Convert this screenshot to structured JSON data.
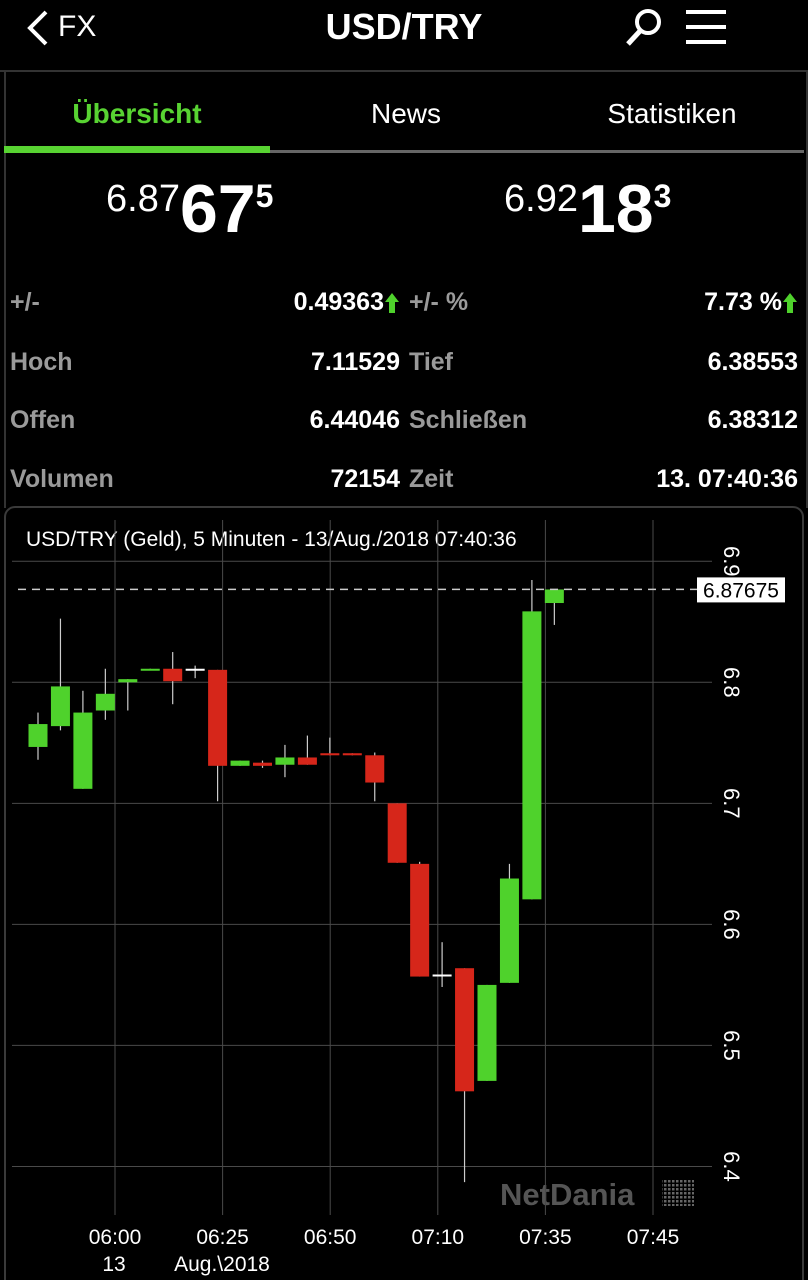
{
  "header": {
    "back": "FX",
    "title": "USD/TRY"
  },
  "tabs": [
    "Übersicht",
    "News",
    "Statistiken"
  ],
  "quotes": [
    {
      "prefix": "6.87",
      "big": "67",
      "sup": "5"
    },
    {
      "prefix": "6.92",
      "big": "18",
      "sup": "3"
    }
  ],
  "stats": [
    {
      "label": "+/-",
      "value": "0.49363"
    },
    {
      "label": "+/- %",
      "value": "7.73 %"
    },
    {
      "label": "Hoch",
      "value": "7.11529"
    },
    {
      "label": "Tief",
      "value": "6.38553"
    },
    {
      "label": "Offen",
      "value": "6.44046"
    },
    {
      "label": "Schließen",
      "value": "6.38312"
    },
    {
      "label": "Volumen",
      "value": "72154"
    },
    {
      "label": "Zeit",
      "value": "13. 07:40:36"
    }
  ],
  "chart_data": {
    "type": "candlestick",
    "title": "USD/TRY (Geld), 5 Minuten - 13/Aug./2018 07:40:36",
    "open": [
      6.7466,
      6.7638,
      6.712,
      6.7767,
      6.8,
      6.8103,
      6.8112,
      6.8112,
      6.8103,
      6.731,
      6.7336,
      6.7319,
      6.7379,
      6.7414,
      6.7414,
      6.7397,
      6.7,
      6.65,
      6.5586,
      6.5638,
      6.4707,
      6.5517,
      6.6207,
      6.8655
    ],
    "high": [
      6.775,
      6.8526,
      6.793,
      6.8112,
      6.8026,
      6.8112,
      6.825,
      6.8138,
      6.8103,
      6.7353,
      6.7353,
      6.7483,
      6.756,
      6.7543,
      6.7414,
      6.742,
      6.7,
      6.6517,
      6.5853,
      6.5638,
      6.55,
      6.65,
      6.8845,
      6.8767
    ],
    "low": [
      6.736,
      6.7603,
      6.712,
      6.769,
      6.7767,
      6.8103,
      6.7819,
      6.8034,
      6.7017,
      6.731,
      6.7293,
      6.7216,
      6.7319,
      6.7397,
      6.7397,
      6.7017,
      6.6509,
      6.5569,
      6.5483,
      6.3871,
      6.4707,
      6.5517,
      6.6207,
      6.8474
    ],
    "close": [
      6.7655,
      6.7966,
      6.775,
      6.7905,
      6.8026,
      6.8112,
      6.8009,
      6.8112,
      6.731,
      6.7353,
      6.731,
      6.7379,
      6.7319,
      6.7397,
      6.7397,
      6.7172,
      6.6509,
      6.5569,
      6.5586,
      6.4621,
      6.55,
      6.6379,
      6.8586,
      6.8767
    ],
    "up_color": "#4fd22c",
    "down_color": "#d6261a",
    "doji_color": "#ffffff",
    "last": {
      "value": 6.87675,
      "label": "6.87675"
    },
    "ylim": [
      6.35,
      6.925
    ],
    "yticks": [
      6.4,
      6.5,
      6.6,
      6.7,
      6.8,
      6.9
    ],
    "xticks": [
      "06:00",
      "06:25",
      "06:50",
      "07:10",
      "07:35",
      "07:45"
    ],
    "xtick_sublabels": [
      "13",
      "Aug.\\2018"
    ],
    "watermark": "NetDania",
    "grid": true
  }
}
